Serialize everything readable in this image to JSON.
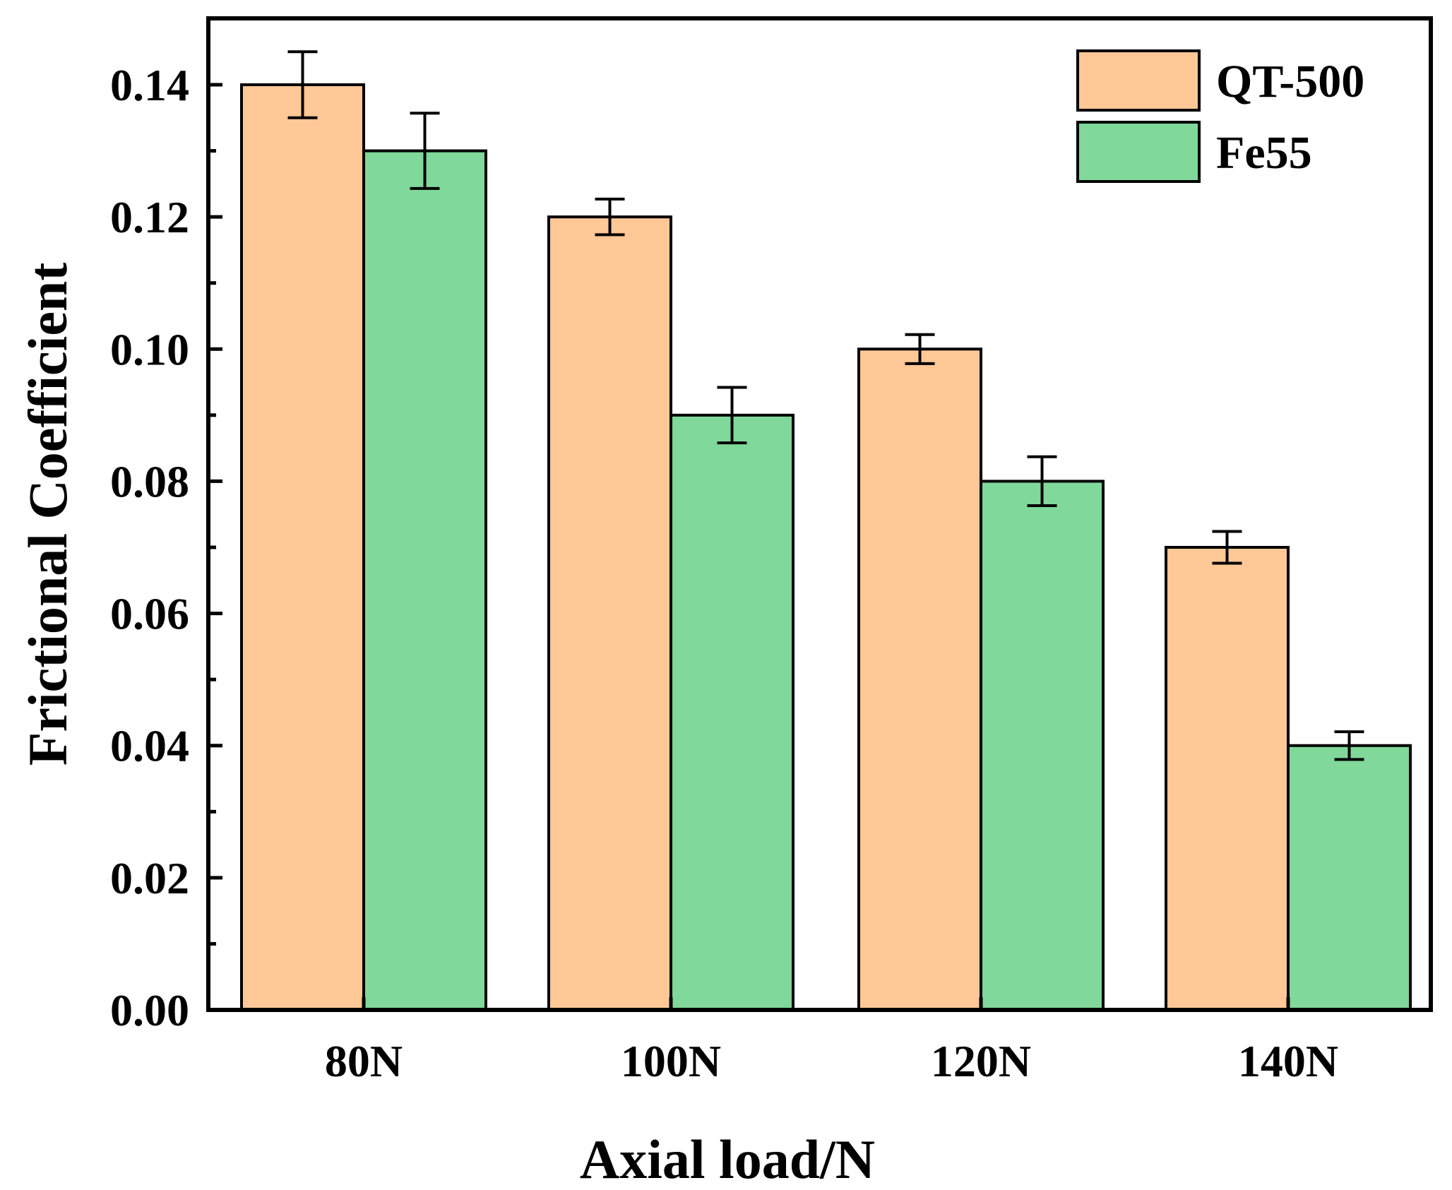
{
  "chart_data": {
    "type": "bar",
    "title": "",
    "xlabel": "Axial load/N",
    "ylabel": "Frictional Coefficient",
    "categories": [
      "80N",
      "100N",
      "120N",
      "140N"
    ],
    "ylim": [
      0,
      0.15
    ],
    "yticks": [
      0.0,
      0.02,
      0.04,
      0.06,
      0.08,
      0.1,
      0.12,
      0.14
    ],
    "ytick_labels": [
      "0.00",
      "0.02",
      "0.04",
      "0.06",
      "0.08",
      "0.10",
      "0.12",
      "0.14"
    ],
    "grid": false,
    "legend_position": "top-right",
    "series": [
      {
        "name": "QT-500",
        "color": "#ffc896",
        "values": [
          0.14,
          0.12,
          0.1,
          0.07
        ],
        "errors": [
          0.005,
          0.0027,
          0.0022,
          0.0024
        ]
      },
      {
        "name": "Fe55",
        "color": "#80d89a",
        "values": [
          0.13,
          0.09,
          0.08,
          0.04
        ],
        "errors": [
          0.0057,
          0.0042,
          0.0037,
          0.0021
        ]
      }
    ]
  }
}
